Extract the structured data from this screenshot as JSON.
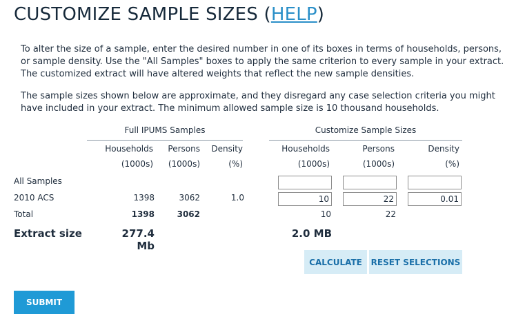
{
  "page": {
    "title_prefix": "CUSTOMIZE SAMPLE SIZES (",
    "help_link": "HELP",
    "title_suffix": ")",
    "intro_paragraph_1": "To alter the size of a sample, enter the desired number in one of its boxes in terms of households, persons, or sample density. Use the \"All Samples\" boxes to apply the same criterion to every sample in your extract. The customized extract will have altered weights that reflect the new sample densities.",
    "intro_paragraph_2": "The sample sizes shown below are approximate, and they disregard any case selection criteria you might have included in your extract. The minimum allowed sample size is 10 thousand households."
  },
  "table": {
    "full_group_label": "Full IPUMS Samples",
    "custom_group_label": "Customize Sample Sizes",
    "headers": {
      "households": "Households",
      "persons": "Persons",
      "density": "Density",
      "unit_1000s": "(1000s)",
      "unit_pct": "(%)"
    },
    "rows": {
      "all_samples_label": "All Samples",
      "acs_label": "2010 ACS",
      "total_label": "Total",
      "extract_size_label": "Extract size"
    },
    "acs": {
      "households": "1398",
      "persons": "3062",
      "density": "1.0"
    },
    "total": {
      "households": "1398",
      "persons": "3062"
    },
    "extract_size_full": "277.4 Mb",
    "custom": {
      "all_households": "",
      "all_persons": "",
      "all_density": "",
      "acs_households": "10",
      "acs_persons": "22",
      "acs_density": "0.01",
      "total_households": "10",
      "total_persons": "22",
      "extract_size": "2.0 MB"
    }
  },
  "buttons": {
    "calculate": "CALCULATE",
    "reset": "RESET SELECTIONS",
    "submit": "SUBMIT"
  },
  "colors": {
    "link": "#2a8fc8",
    "light_button_bg": "#d6ecf6",
    "submit_bg": "#1f9ad6"
  }
}
